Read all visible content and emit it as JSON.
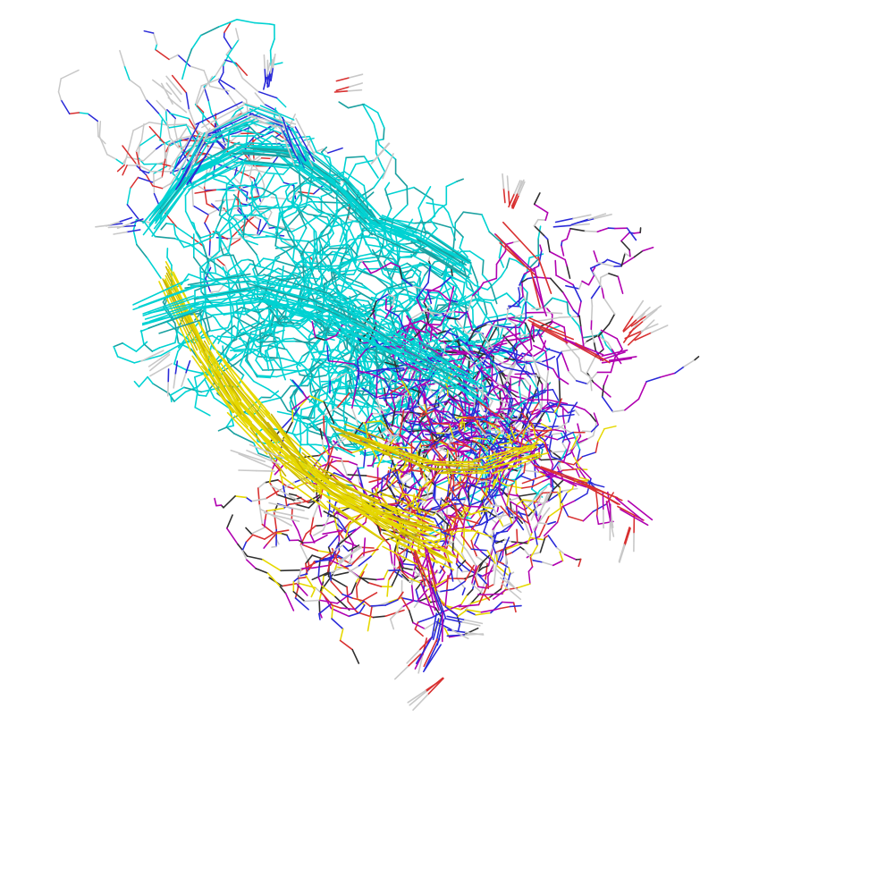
{
  "scene": {
    "background": "#ffffff",
    "rendering": "wireframe-lines",
    "element_colors": {
      "carbon_helix": "#00d2d2",
      "carbon_helix_dark": "#1aa0a0",
      "carbon_strand": "#e6d800",
      "carbon_coil": "#b000b0",
      "hydrogen": "#c8c8c8",
      "nitrogen": "#2a2ad8",
      "oxygen": "#d83030",
      "sulfur": "#c8b400",
      "backbone_dark": "#303030"
    }
  }
}
